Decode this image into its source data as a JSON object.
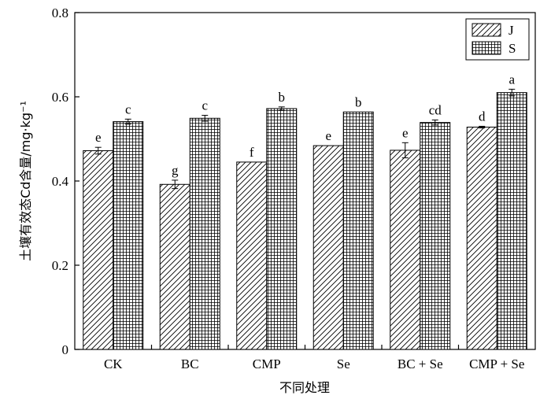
{
  "chart_data": {
    "type": "bar",
    "categories": [
      "CK",
      "BC",
      "CMP",
      "Se",
      "BC + Se",
      "CMP + Se"
    ],
    "series": [
      {
        "name": "J",
        "pattern": "diagonal",
        "values": [
          0.472,
          0.392,
          0.445,
          0.484,
          0.473,
          0.528
        ],
        "errors": [
          0.008,
          0.01,
          0.0,
          0.0,
          0.018,
          0.002
        ],
        "significance": [
          "e",
          "g",
          "f",
          "e",
          "e",
          "d"
        ]
      },
      {
        "name": "S",
        "pattern": "grid",
        "values": [
          0.541,
          0.549,
          0.572,
          0.564,
          0.539,
          0.61
        ],
        "errors": [
          0.006,
          0.007,
          0.004,
          0.0,
          0.006,
          0.008
        ],
        "significance": [
          "c",
          "c",
          "b",
          "b",
          "cd",
          "a"
        ]
      }
    ],
    "xlabel": "不同处理",
    "ylabel": "土壤有效态Cd含量/mg·kg⁻¹",
    "ylim": [
      0,
      0.8
    ],
    "yticks": [
      "0",
      "0.2",
      "0.4",
      "0.6",
      "0.8"
    ],
    "ytick_values": [
      0,
      0.2,
      0.4,
      0.6,
      0.8
    ],
    "grid": false,
    "legend_position": "top-right",
    "colors": {
      "stroke": "#000000",
      "fill": "#ffffff"
    }
  }
}
